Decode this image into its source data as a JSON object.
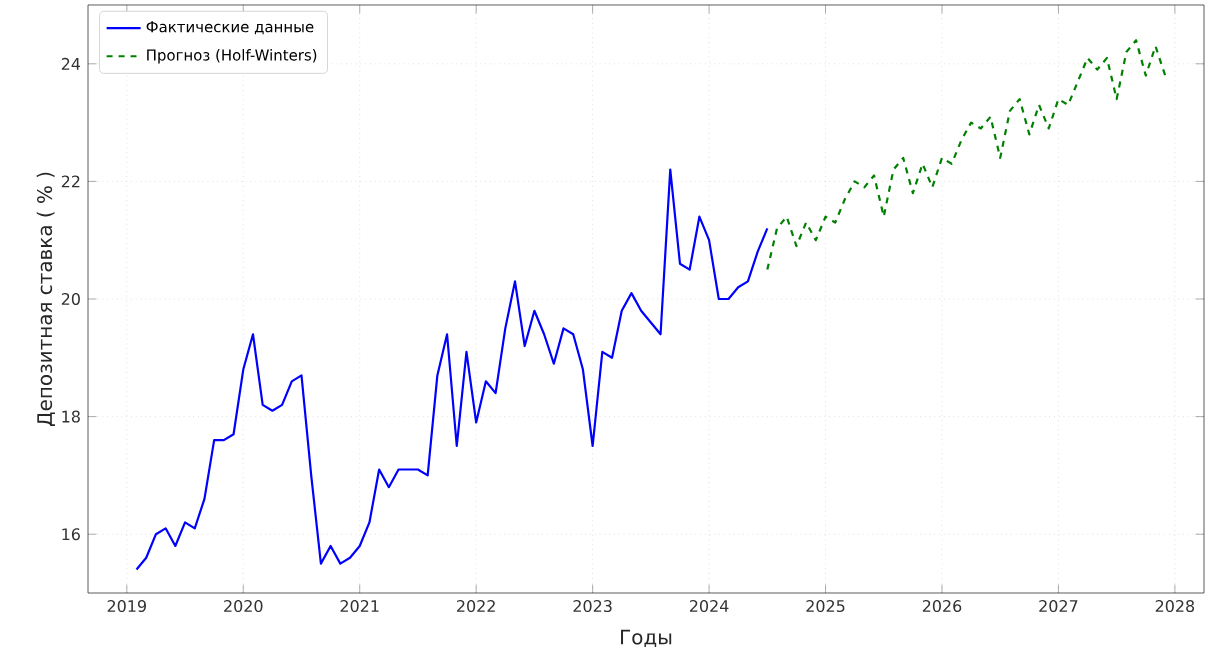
{
  "chart_data": {
    "type": "line",
    "xlabel": "Годы",
    "ylabel": "Депозитная ставка ( % )",
    "xlim": [
      "2018-09",
      "2028-04"
    ],
    "ylim": [
      15,
      25
    ],
    "xticks": [
      "2019",
      "2020",
      "2021",
      "2022",
      "2023",
      "2024",
      "2025",
      "2026",
      "2027",
      "2028"
    ],
    "yticks": [
      16,
      18,
      20,
      22,
      24
    ],
    "grid": true,
    "legend": "top left",
    "series": [
      {
        "name": "Фактические данные",
        "color": "#0000ff",
        "line_style": "solid",
        "x": [
          "2019-02",
          "2019-03",
          "2019-04",
          "2019-05",
          "2019-06",
          "2019-07",
          "2019-08",
          "2019-09",
          "2019-10",
          "2019-11",
          "2019-12",
          "2020-01",
          "2020-02",
          "2020-03",
          "2020-04",
          "2020-05",
          "2020-06",
          "2020-07",
          "2020-08",
          "2020-09",
          "2020-10",
          "2020-11",
          "2020-12",
          "2021-01",
          "2021-02",
          "2021-03",
          "2021-04",
          "2021-05",
          "2021-06",
          "2021-07",
          "2021-08",
          "2021-09",
          "2021-10",
          "2021-11",
          "2021-12",
          "2022-01",
          "2022-02",
          "2022-03",
          "2022-04",
          "2022-05",
          "2022-06",
          "2022-07",
          "2022-08",
          "2022-09",
          "2022-10",
          "2022-11",
          "2022-12",
          "2023-01",
          "2023-02",
          "2023-03",
          "2023-04",
          "2023-05",
          "2023-06",
          "2023-07",
          "2023-08",
          "2023-09",
          "2023-10",
          "2023-11",
          "2023-12",
          "2024-01",
          "2024-02",
          "2024-03",
          "2024-04",
          "2024-05",
          "2024-06",
          "2024-07"
        ],
        "values": [
          15.4,
          15.6,
          16.0,
          16.1,
          15.8,
          16.2,
          16.1,
          16.6,
          17.6,
          17.6,
          17.7,
          18.8,
          19.4,
          18.2,
          18.1,
          18.2,
          18.6,
          18.7,
          17.0,
          15.5,
          15.8,
          15.5,
          15.6,
          15.8,
          16.2,
          17.1,
          16.8,
          17.1,
          17.1,
          17.1,
          17.0,
          18.7,
          19.4,
          17.5,
          19.1,
          17.9,
          18.6,
          18.4,
          19.5,
          20.3,
          19.2,
          19.8,
          19.4,
          18.9,
          19.5,
          19.4,
          18.8,
          17.5,
          19.1,
          19.0,
          19.8,
          20.1,
          19.8,
          19.6,
          19.4,
          22.2,
          20.6,
          20.5,
          21.4,
          21.0,
          20.0,
          20.0,
          20.2,
          20.3,
          20.8,
          21.2
        ]
      },
      {
        "name": "Прогноз (Holf-Winters)",
        "color": "#008000",
        "line_style": "dashed",
        "x": [
          "2024-07",
          "2024-08",
          "2024-09",
          "2024-10",
          "2024-11",
          "2024-12",
          "2025-01",
          "2025-02",
          "2025-03",
          "2025-04",
          "2025-05",
          "2025-06",
          "2025-07",
          "2025-08",
          "2025-09",
          "2025-10",
          "2025-11",
          "2025-12",
          "2026-01",
          "2026-02",
          "2026-03",
          "2026-04",
          "2026-05",
          "2026-06",
          "2026-07",
          "2026-08",
          "2026-09",
          "2026-10",
          "2026-11",
          "2026-12",
          "2027-01",
          "2027-02",
          "2027-03",
          "2027-04",
          "2027-05",
          "2027-06",
          "2027-07",
          "2027-08",
          "2027-09",
          "2027-10",
          "2027-11",
          "2027-12"
        ],
        "values": [
          20.5,
          21.2,
          21.4,
          20.9,
          21.3,
          21.0,
          21.4,
          21.3,
          21.7,
          22.0,
          21.9,
          22.1,
          21.4,
          22.2,
          22.4,
          21.8,
          22.3,
          21.9,
          22.4,
          22.3,
          22.7,
          23.0,
          22.9,
          23.1,
          22.4,
          23.2,
          23.4,
          22.8,
          23.3,
          22.9,
          23.4,
          23.3,
          23.7,
          24.1,
          23.9,
          24.1,
          23.4,
          24.2,
          24.4,
          23.8,
          24.3,
          23.8
        ]
      }
    ]
  }
}
